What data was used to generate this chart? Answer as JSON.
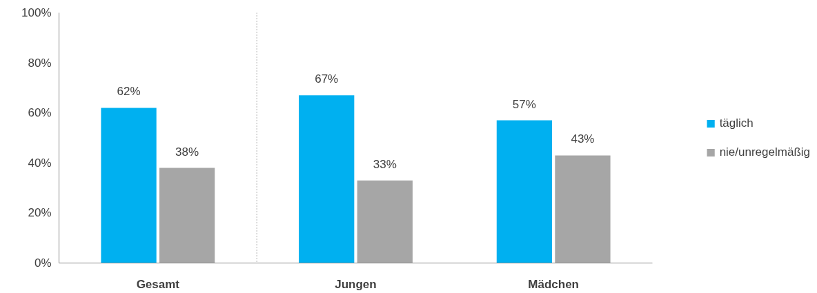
{
  "chart_data": {
    "type": "bar",
    "categories": [
      "Gesamt",
      "Jungen",
      "Mädchen"
    ],
    "series": [
      {
        "name": "täglich",
        "color": "#00b0f0",
        "values": [
          62,
          67,
          57
        ],
        "value_labels": [
          "62%",
          "67%",
          "57%"
        ]
      },
      {
        "name": "nie/unregelmäßig",
        "color": "#a6a6a6",
        "values": [
          38,
          33,
          43
        ],
        "value_labels": [
          "38%",
          "33%",
          "43%"
        ]
      }
    ],
    "ylim": [
      0,
      100
    ],
    "yticks": [
      {
        "value": 0,
        "label": "0%"
      },
      {
        "value": 20,
        "label": "20%"
      },
      {
        "value": 40,
        "label": "40%"
      },
      {
        "value": 60,
        "label": "60%"
      },
      {
        "value": 80,
        "label": "80%"
      },
      {
        "value": 100,
        "label": "100%"
      }
    ],
    "grid": false,
    "legend": "right"
  }
}
